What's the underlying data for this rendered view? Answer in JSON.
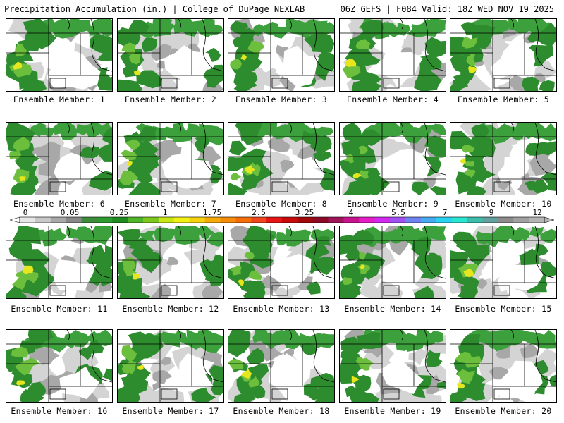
{
  "header": {
    "left": "Precipitation Accumulation (in.) | College of DuPage NEXLAB",
    "right": "06Z GEFS | F084 Valid: 18Z WED NOV 19 2025"
  },
  "colorbar": {
    "ticks": [
      "0",
      "0.05",
      "0.25",
      "1",
      "1.75",
      "2.5",
      "3.25",
      "4",
      "5.5",
      "7",
      "9",
      "12"
    ],
    "colors": [
      "#e6e6e6",
      "#c8c8c8",
      "#a8a8a8",
      "#888888",
      "#3c8c3c",
      "#2e9b2e",
      "#1f8a1f",
      "#50b428",
      "#7cc81e",
      "#c8e614",
      "#f0f014",
      "#f5d20f",
      "#f5aa0a",
      "#f58c0a",
      "#f56e0a",
      "#f0461e",
      "#e61414",
      "#c80a0a",
      "#a00a0a",
      "#8c0a28",
      "#a0145a",
      "#c8148c",
      "#e61ec8",
      "#d228f0",
      "#a050f0",
      "#6e82f0",
      "#46aaf0",
      "#28d2f0",
      "#28e6d2",
      "#3cbeaa",
      "#64a0a0",
      "#8c8c8c",
      "#a0a0a0",
      "#b4b4b4"
    ]
  },
  "colors": {
    "green_dark": "#2d8c2d",
    "green_mid": "#3ca03c",
    "green_light": "#6cbf3c",
    "yellow": "#e6e61e",
    "gray_light": "#d4d4d4",
    "gray_mid": "#a8a8a8",
    "gray_dark": "#808080"
  },
  "panels": [
    {
      "label": "Ensemble Member: 1"
    },
    {
      "label": "Ensemble Member: 2"
    },
    {
      "label": "Ensemble Member: 3"
    },
    {
      "label": "Ensemble Member: 4"
    },
    {
      "label": "Ensemble Member: 5"
    },
    {
      "label": "Ensemble Member: 6"
    },
    {
      "label": "Ensemble Member: 7"
    },
    {
      "label": "Ensemble Member: 8"
    },
    {
      "label": "Ensemble Member: 9"
    },
    {
      "label": "Ensemble Member: 10"
    },
    {
      "label": "Ensemble Member: 11"
    },
    {
      "label": "Ensemble Member: 12"
    },
    {
      "label": "Ensemble Member: 13"
    },
    {
      "label": "Ensemble Member: 14"
    },
    {
      "label": "Ensemble Member: 15"
    },
    {
      "label": "Ensemble Member: 16"
    },
    {
      "label": "Ensemble Member: 17"
    },
    {
      "label": "Ensemble Member: 18"
    },
    {
      "label": "Ensemble Member: 19"
    },
    {
      "label": "Ensemble Member: 20"
    }
  ]
}
